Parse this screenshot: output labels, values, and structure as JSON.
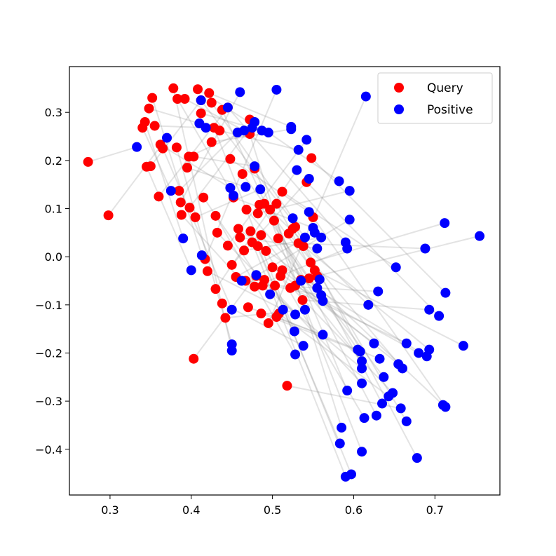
{
  "chart_data": {
    "type": "scatter",
    "title": "",
    "xlabel": "",
    "ylabel": "",
    "xlim": [
      0.25,
      0.78
    ],
    "ylim": [
      -0.495,
      0.395
    ],
    "xticks": [
      0.3,
      0.4,
      0.5,
      0.6,
      0.7
    ],
    "xtick_labels": [
      "0.3",
      "0.4",
      "0.5",
      "0.6",
      "0.7"
    ],
    "yticks": [
      0.3,
      0.2,
      0.1,
      0.0,
      -0.1,
      -0.2,
      -0.3,
      -0.4
    ],
    "ytick_labels": [
      "0.3",
      "0.2",
      "0.1",
      "0.0",
      "−0.1",
      "−0.2",
      "−0.3",
      "−0.4"
    ],
    "grid": false,
    "legend": {
      "placement": "top-right",
      "entries": [
        {
          "label": "Query",
          "color": "#ff0000"
        },
        {
          "label": "Positive",
          "color": "#0000ff"
        }
      ]
    },
    "series": [
      {
        "name": "Query",
        "color": "#ff0000",
        "points": [
          [
            0.273,
            0.197
          ],
          [
            0.298,
            0.086
          ],
          [
            0.34,
            0.268
          ],
          [
            0.343,
            0.28
          ],
          [
            0.345,
            0.187
          ],
          [
            0.348,
            0.308
          ],
          [
            0.35,
            0.188
          ],
          [
            0.352,
            0.33
          ],
          [
            0.355,
            0.272
          ],
          [
            0.36,
            0.125
          ],
          [
            0.362,
            0.233
          ],
          [
            0.365,
            0.225
          ],
          [
            0.378,
            0.35
          ],
          [
            0.382,
            0.227
          ],
          [
            0.383,
            0.328
          ],
          [
            0.385,
            0.137
          ],
          [
            0.387,
            0.113
          ],
          [
            0.388,
            0.087
          ],
          [
            0.392,
            0.328
          ],
          [
            0.395,
            0.185
          ],
          [
            0.397,
            0.208
          ],
          [
            0.398,
            0.102
          ],
          [
            0.403,
            0.208
          ],
          [
            0.403,
            -0.212
          ],
          [
            0.405,
            0.082
          ],
          [
            0.408,
            0.348
          ],
          [
            0.412,
            0.298
          ],
          [
            0.415,
            0.123
          ],
          [
            0.417,
            -0.005
          ],
          [
            0.42,
            -0.03
          ],
          [
            0.422,
            0.34
          ],
          [
            0.425,
            0.238
          ],
          [
            0.425,
            0.32
          ],
          [
            0.428,
            0.268
          ],
          [
            0.43,
            0.085
          ],
          [
            0.432,
            0.05
          ],
          [
            0.43,
            -0.067
          ],
          [
            0.435,
            0.262
          ],
          [
            0.438,
            0.305
          ],
          [
            0.438,
            -0.097
          ],
          [
            0.442,
            -0.127
          ],
          [
            0.445,
            0.023
          ],
          [
            0.448,
            0.203
          ],
          [
            0.45,
            -0.017
          ],
          [
            0.452,
            0.123
          ],
          [
            0.455,
            -0.042
          ],
          [
            0.458,
            0.058
          ],
          [
            0.46,
            0.04
          ],
          [
            0.463,
            0.172
          ],
          [
            0.465,
            0.013
          ],
          [
            0.467,
            -0.05
          ],
          [
            0.468,
            0.098
          ],
          [
            0.47,
            -0.105
          ],
          [
            0.472,
            0.285
          ],
          [
            0.472,
            0.255
          ],
          [
            0.473,
            0.053
          ],
          [
            0.475,
            0.03
          ],
          [
            0.478,
            -0.062
          ],
          [
            0.478,
            0.183
          ],
          [
            0.48,
            -0.04
          ],
          [
            0.482,
            0.09
          ],
          [
            0.482,
            0.022
          ],
          [
            0.484,
            0.108
          ],
          [
            0.486,
            -0.118
          ],
          [
            0.486,
            0.045
          ],
          [
            0.488,
            -0.06
          ],
          [
            0.49,
            -0.048
          ],
          [
            0.49,
            0.11
          ],
          [
            0.492,
            0.012
          ],
          [
            0.495,
            -0.138
          ],
          [
            0.497,
            0.098
          ],
          [
            0.5,
            -0.022
          ],
          [
            0.502,
            0.075
          ],
          [
            0.503,
            -0.06
          ],
          [
            0.505,
            -0.125
          ],
          [
            0.505,
            0.11
          ],
          [
            0.507,
            0.038
          ],
          [
            0.508,
            -0.118
          ],
          [
            0.51,
            -0.04
          ],
          [
            0.512,
            0.135
          ],
          [
            0.512,
            -0.028
          ],
          [
            0.518,
            -0.268
          ],
          [
            0.52,
            0.048
          ],
          [
            0.522,
            -0.065
          ],
          [
            0.525,
            0.058
          ],
          [
            0.528,
            0.062
          ],
          [
            0.528,
            -0.06
          ],
          [
            0.532,
            0.028
          ],
          [
            0.535,
            -0.048
          ],
          [
            0.537,
            -0.09
          ],
          [
            0.538,
            0.022
          ],
          [
            0.542,
            0.155
          ],
          [
            0.545,
            -0.045
          ],
          [
            0.547,
            -0.012
          ],
          [
            0.548,
            0.205
          ],
          [
            0.55,
            0.082
          ],
          [
            0.552,
            -0.028
          ],
          [
            0.555,
            -0.04
          ],
          [
            0.412,
            0.325
          ],
          [
            0.445,
            0.31
          ]
        ]
      },
      {
        "name": "Positive",
        "color": "#0000ff",
        "points": [
          [
            0.333,
            0.228
          ],
          [
            0.37,
            0.247
          ],
          [
            0.375,
            0.137
          ],
          [
            0.39,
            0.038
          ],
          [
            0.4,
            -0.028
          ],
          [
            0.41,
            0.277
          ],
          [
            0.412,
            0.325
          ],
          [
            0.413,
            0.003
          ],
          [
            0.418,
            0.268
          ],
          [
            0.445,
            0.31
          ],
          [
            0.448,
            0.143
          ],
          [
            0.45,
            -0.11
          ],
          [
            0.45,
            -0.195
          ],
          [
            0.45,
            -0.182
          ],
          [
            0.452,
            0.127
          ],
          [
            0.457,
            0.258
          ],
          [
            0.46,
            0.342
          ],
          [
            0.462,
            -0.05
          ],
          [
            0.465,
            0.262
          ],
          [
            0.467,
            0.145
          ],
          [
            0.475,
            0.268
          ],
          [
            0.478,
            0.28
          ],
          [
            0.478,
            0.188
          ],
          [
            0.48,
            -0.038
          ],
          [
            0.485,
            0.14
          ],
          [
            0.487,
            0.262
          ],
          [
            0.495,
            0.258
          ],
          [
            0.497,
            -0.078
          ],
          [
            0.505,
            0.347
          ],
          [
            0.513,
            -0.11
          ],
          [
            0.523,
            0.27
          ],
          [
            0.523,
            0.265
          ],
          [
            0.525,
            0.08
          ],
          [
            0.527,
            -0.155
          ],
          [
            0.528,
            -0.203
          ],
          [
            0.528,
            -0.12
          ],
          [
            0.53,
            0.18
          ],
          [
            0.532,
            0.222
          ],
          [
            0.535,
            -0.05
          ],
          [
            0.538,
            -0.185
          ],
          [
            0.54,
            -0.11
          ],
          [
            0.542,
            0.243
          ],
          [
            0.545,
            0.093
          ],
          [
            0.545,
            0.162
          ],
          [
            0.55,
            0.06
          ],
          [
            0.552,
            0.05
          ],
          [
            0.555,
            -0.065
          ],
          [
            0.555,
            0.017
          ],
          [
            0.558,
            -0.047
          ],
          [
            0.56,
            0.04
          ],
          [
            0.56,
            -0.08
          ],
          [
            0.562,
            -0.092
          ],
          [
            0.562,
            -0.162
          ],
          [
            0.582,
            0.157
          ],
          [
            0.585,
            -0.355
          ],
          [
            0.583,
            -0.388
          ],
          [
            0.59,
            -0.457
          ],
          [
            0.592,
            0.017
          ],
          [
            0.592,
            -0.278
          ],
          [
            0.595,
            0.077
          ],
          [
            0.595,
            0.137
          ],
          [
            0.597,
            -0.452
          ],
          [
            0.605,
            -0.193
          ],
          [
            0.608,
            -0.197
          ],
          [
            0.61,
            -0.217
          ],
          [
            0.61,
            -0.232
          ],
          [
            0.61,
            -0.263
          ],
          [
            0.61,
            -0.405
          ],
          [
            0.613,
            -0.335
          ],
          [
            0.615,
            0.333
          ],
          [
            0.618,
            -0.1
          ],
          [
            0.625,
            -0.18
          ],
          [
            0.628,
            -0.33
          ],
          [
            0.63,
            -0.072
          ],
          [
            0.632,
            -0.212
          ],
          [
            0.635,
            -0.305
          ],
          [
            0.637,
            -0.25
          ],
          [
            0.643,
            -0.29
          ],
          [
            0.648,
            -0.283
          ],
          [
            0.652,
            -0.022
          ],
          [
            0.655,
            -0.223
          ],
          [
            0.658,
            -0.315
          ],
          [
            0.66,
            -0.232
          ],
          [
            0.665,
            -0.18
          ],
          [
            0.665,
            -0.342
          ],
          [
            0.678,
            -0.418
          ],
          [
            0.68,
            -0.2
          ],
          [
            0.688,
            0.017
          ],
          [
            0.69,
            -0.207
          ],
          [
            0.693,
            -0.11
          ],
          [
            0.693,
            -0.193
          ],
          [
            0.705,
            -0.123
          ],
          [
            0.71,
            -0.308
          ],
          [
            0.712,
            0.07
          ],
          [
            0.713,
            -0.075
          ],
          [
            0.713,
            -0.312
          ],
          [
            0.735,
            -0.185
          ],
          [
            0.755,
            0.043
          ],
          [
            0.54,
            0.04
          ],
          [
            0.59,
            0.03
          ]
        ]
      }
    ]
  }
}
